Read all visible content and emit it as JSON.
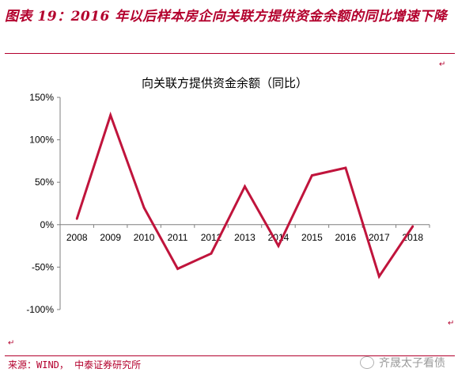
{
  "figure": {
    "title": "图表 19：2016 年以后样本房企向关联方提供资金余额的同比增速下降",
    "source": "来源：WIND， 中泰证券研究所",
    "watermark": "齐晟太子看债"
  },
  "colors": {
    "accent": "#b3002d",
    "line": "#c0143c"
  },
  "chart_data": {
    "type": "line",
    "title": "向关联方提供资金余额（同比）",
    "categories": [
      "2008",
      "2009",
      "2010",
      "2011",
      "2012",
      "2013",
      "2014",
      "2015",
      "2016",
      "2017",
      "2018"
    ],
    "series": [
      {
        "values": [
          7,
          129,
          20,
          -52,
          -34,
          45,
          -25,
          58,
          67,
          -61,
          -2
        ]
      }
    ],
    "ylim": [
      -100,
      150
    ],
    "yticks": [
      150,
      100,
      50,
      0,
      -50,
      -100
    ],
    "ytick_labels": [
      "150%",
      "100%",
      "50%",
      "0%",
      "-50%",
      "-100%"
    ],
    "grid": false,
    "legend": false
  }
}
